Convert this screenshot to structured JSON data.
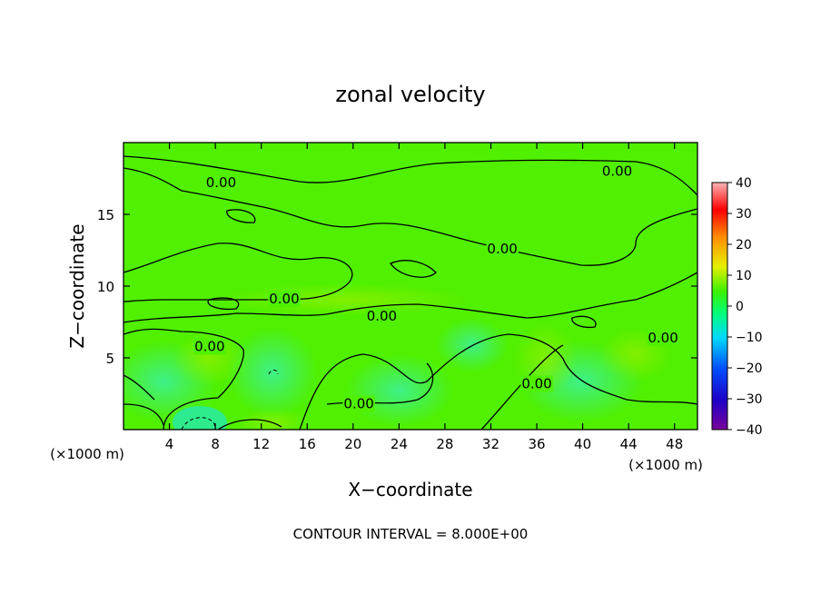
{
  "chart_data": {
    "type": "heatmap",
    "title": "zonal velocity",
    "xlabel": "X−coordinate",
    "ylabel": "Z−coordinate",
    "x_unit_label": "(×1000 m)",
    "y_unit_label": "(×1000 m)",
    "xlim": [
      0,
      50
    ],
    "ylim": [
      0,
      20
    ],
    "x_ticks": [
      4,
      8,
      12,
      16,
      20,
      24,
      28,
      32,
      36,
      40,
      44,
      48
    ],
    "x_tick_labels": [
      "4",
      "8",
      "12",
      "16",
      "20",
      "24",
      "28",
      "32",
      "36",
      "40",
      "44",
      "48"
    ],
    "y_ticks": [
      5,
      10,
      15
    ],
    "y_tick_labels": [
      "5",
      "10",
      "15"
    ],
    "colorbar": {
      "range": [
        -40,
        40
      ],
      "ticks": [
        40,
        30,
        20,
        10,
        0,
        -10,
        -20,
        -30,
        -40
      ],
      "tick_labels": [
        "40",
        "30",
        "20",
        "10",
        "0",
        "−10",
        "−20",
        "−30",
        "−40"
      ],
      "colors": [
        "#7a009a",
        "#1e00c8",
        "#0050ff",
        "#00d8ff",
        "#00ff7a",
        "#3cf000",
        "#e6f000",
        "#ff8c00",
        "#ff0000",
        "#ffb4b4"
      ]
    },
    "field_range": [
      -12,
      8
    ],
    "contour_interval": 8.0,
    "contour_labels": [
      {
        "text": "0.00",
        "x": 8.5,
        "z": 17.2
      },
      {
        "text": "0.00",
        "x": 43.0,
        "z": 18.0
      },
      {
        "text": "0.00",
        "x": 33.0,
        "z": 12.6
      },
      {
        "text": "0.00",
        "x": 14.0,
        "z": 9.1
      },
      {
        "text": "0.00",
        "x": 22.5,
        "z": 7.9
      },
      {
        "text": "0.00",
        "x": 7.5,
        "z": 5.8
      },
      {
        "text": "0.00",
        "x": 47.0,
        "z": 6.4
      },
      {
        "text": "0.00",
        "x": 36.0,
        "z": 3.2
      },
      {
        "text": "0.00",
        "x": 20.5,
        "z": 1.8
      }
    ],
    "footer": "CONTOUR INTERVAL = 8.000E+00"
  }
}
